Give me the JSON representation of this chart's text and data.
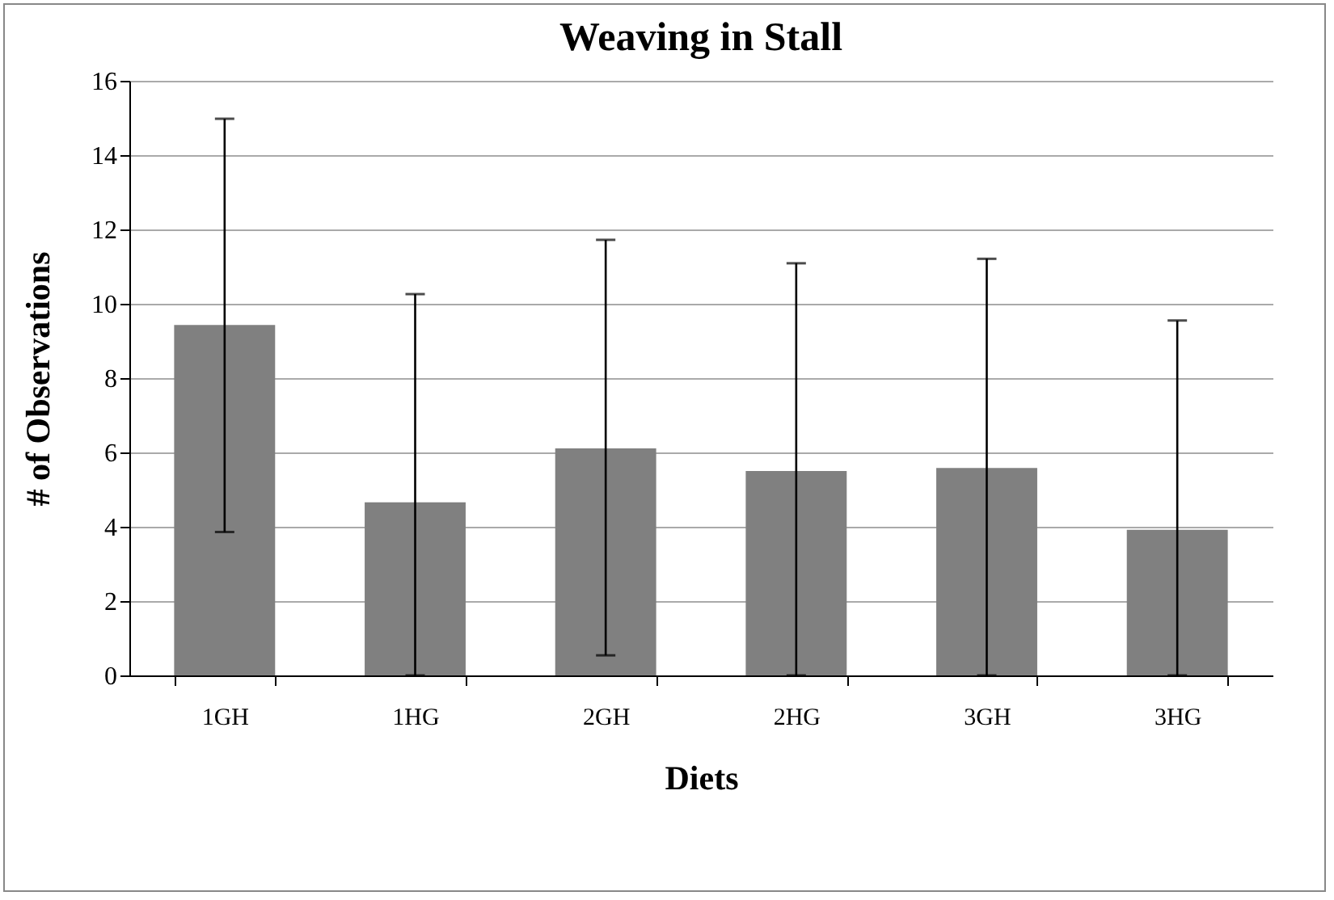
{
  "chart_data": {
    "type": "bar",
    "title": "Weaving in Stall",
    "xlabel": "Diets",
    "ylabel": "# of Observations",
    "categories": [
      "1GH",
      "1HG",
      "2GH",
      "2HG",
      "3GH",
      "3HG"
    ],
    "values": [
      9.43,
      4.66,
      6.11,
      5.5,
      5.58,
      3.92
    ],
    "errors": [
      [
        3.86,
        14.98
      ],
      [
        0,
        10.26
      ],
      [
        0.54,
        11.72
      ],
      [
        0,
        11.09
      ],
      [
        0,
        11.21
      ],
      [
        0,
        9.55
      ]
    ],
    "color": "#808080",
    "ylim": [
      0,
      16
    ],
    "yticks": [
      0,
      2,
      4,
      6,
      8,
      10,
      12,
      14,
      16
    ],
    "grid": "y"
  }
}
